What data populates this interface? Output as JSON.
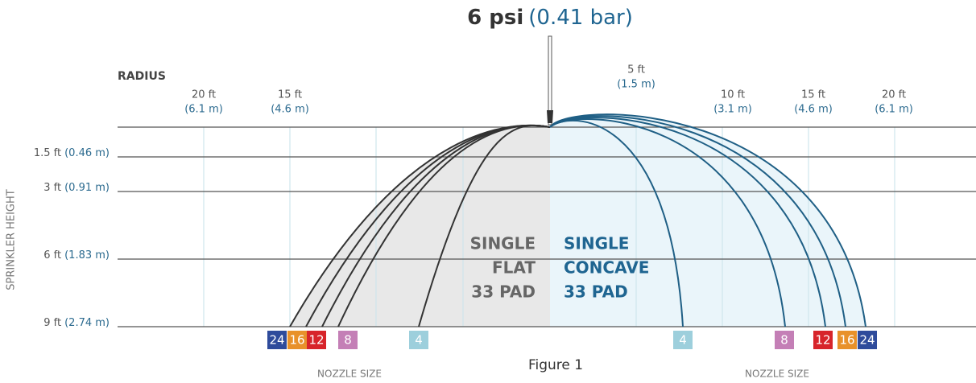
{
  "title": {
    "bold": "6 psi",
    "metric": "(0.41 bar)"
  },
  "radius_label": "RADIUS",
  "radius_left": [
    {
      "ft": "20 ft",
      "m": "(6.1 m)"
    },
    {
      "ft": "15 ft",
      "m": "(4.6 m)"
    }
  ],
  "radius_right": [
    {
      "ft": "5 ft",
      "m": "(1.5 m)"
    },
    {
      "ft": "10 ft",
      "m": "(3.1 m)"
    },
    {
      "ft": "15 ft",
      "m": "(4.6 m)"
    },
    {
      "ft": "20 ft",
      "m": "(6.1 m)"
    }
  ],
  "heights": [
    {
      "ft": "1.5 ft",
      "m": "(0.46 m)"
    },
    {
      "ft": "3 ft",
      "m": "(0.91 m)"
    },
    {
      "ft": "6 ft",
      "m": "(1.83 m)"
    },
    {
      "ft": "9 ft",
      "m": "(2.74 m)"
    }
  ],
  "height_axis": "SPRINKLER HEIGHT",
  "left_pad": [
    "SINGLE",
    "FLAT",
    "33 PAD"
  ],
  "right_pad": [
    "SINGLE",
    "CONCAVE",
    "33 PAD"
  ],
  "nozzles_left": [
    {
      "label": "24",
      "color": "#2e4b9b"
    },
    {
      "label": "16",
      "color": "#e8912a"
    },
    {
      "label": "12",
      "color": "#d7242a"
    },
    {
      "label": "8",
      "color": "#c47fb6"
    },
    {
      "label": "4",
      "color": "#9dcfdc"
    }
  ],
  "nozzles_right": [
    {
      "label": "4",
      "color": "#9dcfdc"
    },
    {
      "label": "8",
      "color": "#c47fb6"
    },
    {
      "label": "12",
      "color": "#d7242a"
    },
    {
      "label": "16",
      "color": "#e8912a"
    },
    {
      "label": "24",
      "color": "#2e4b9b"
    }
  ],
  "nozzle_label_left": "NOZZLE SIZE",
  "nozzle_label_right": "NOZZLE SIZE",
  "caption": "Figure 1"
}
